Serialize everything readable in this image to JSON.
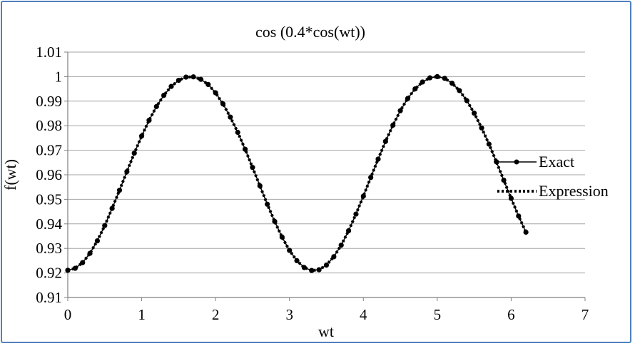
{
  "chart_data": {
    "type": "line",
    "title": "cos (0.4*cos(wt))",
    "xlabel": "wt",
    "ylabel": "f(wt)",
    "xlim": [
      0,
      7
    ],
    "ylim": [
      0.91,
      1.01
    ],
    "x_ticks": [
      "0",
      "1",
      "2",
      "3",
      "4",
      "5",
      "6",
      "7"
    ],
    "y_ticks": [
      "0.91",
      "0.92",
      "0.93",
      "0.94",
      "0.95",
      "0.96",
      "0.97",
      "0.98",
      "0.99",
      "1",
      "1.01"
    ],
    "grid": "horizontal",
    "legend_position": "right",
    "series": [
      {
        "name": "Exact",
        "style": "solid line with circle markers",
        "color": "#000000",
        "x": [
          0.0,
          0.1,
          0.2,
          0.3,
          0.4,
          0.5,
          0.6,
          0.7,
          0.8,
          0.9,
          1.0,
          1.1,
          1.2,
          1.3,
          1.4,
          1.5,
          1.6,
          1.7,
          1.8,
          1.9,
          2.0,
          2.1,
          2.2,
          2.3,
          2.4,
          2.5,
          2.6,
          2.7,
          2.8,
          2.9,
          3.0,
          3.1,
          3.2,
          3.3,
          3.4,
          3.5,
          3.6,
          3.7,
          3.8,
          3.9,
          4.0,
          4.1,
          4.2,
          4.3,
          4.4,
          4.5,
          4.6,
          4.7,
          4.8,
          4.9,
          5.0,
          5.1,
          5.2,
          5.3,
          5.4,
          5.5,
          5.6,
          5.7,
          5.8,
          5.9,
          6.0,
          6.1,
          6.2
        ],
        "y": [
          0.9211,
          0.9219,
          0.9242,
          0.928,
          0.9331,
          0.9393,
          0.9463,
          0.9537,
          0.9613,
          0.9688,
          0.9758,
          0.9822,
          0.9878,
          0.9924,
          0.996,
          0.9985,
          0.9998,
          0.9999,
          0.9989,
          0.9968,
          0.9934,
          0.9889,
          0.9835,
          0.9773,
          0.9704,
          0.963,
          0.9555,
          0.948,
          0.941,
          0.9346,
          0.9292,
          0.925,
          0.9222,
          0.921,
          0.9213,
          0.9232,
          0.9266,
          0.9313,
          0.9372,
          0.944,
          0.9513,
          0.9589,
          0.9664,
          0.9736,
          0.9802,
          0.9861,
          0.9911,
          0.995,
          0.9978,
          0.9995,
          1.0,
          0.9993,
          0.9973,
          0.9943,
          0.9902,
          0.9851,
          0.9791,
          0.9725,
          0.9653,
          0.9578,
          0.9504,
          0.9432,
          0.9366
        ]
      },
      {
        "name": "Expression",
        "style": "dotted line",
        "color": "#000000",
        "x": [
          0.0,
          0.1,
          0.2,
          0.3,
          0.4,
          0.5,
          0.6,
          0.7,
          0.8,
          0.9,
          1.0,
          1.1,
          1.2,
          1.3,
          1.4,
          1.5,
          1.6,
          1.7,
          1.8,
          1.9,
          2.0,
          2.1,
          2.2,
          2.3,
          2.4,
          2.5,
          2.6,
          2.7,
          2.8,
          2.9,
          3.0,
          3.1,
          3.2,
          3.3,
          3.4,
          3.5,
          3.6,
          3.7,
          3.8,
          3.9,
          4.0,
          4.1,
          4.2,
          4.3,
          4.4,
          4.5,
          4.6,
          4.7,
          4.8,
          4.9,
          5.0,
          5.1,
          5.2,
          5.3,
          5.4,
          5.5,
          5.6,
          5.7,
          5.8,
          5.9,
          6.0,
          6.1,
          6.2
        ],
        "y": [
          0.9211,
          0.9219,
          0.9242,
          0.928,
          0.9331,
          0.9393,
          0.9463,
          0.9537,
          0.9613,
          0.9688,
          0.9758,
          0.9822,
          0.9878,
          0.9924,
          0.996,
          0.9985,
          0.9998,
          0.9999,
          0.9989,
          0.9968,
          0.9934,
          0.9889,
          0.9835,
          0.9773,
          0.9704,
          0.963,
          0.9555,
          0.948,
          0.941,
          0.9346,
          0.9292,
          0.925,
          0.9222,
          0.921,
          0.9213,
          0.9232,
          0.9266,
          0.9313,
          0.9372,
          0.944,
          0.9513,
          0.9589,
          0.9664,
          0.9736,
          0.9802,
          0.9861,
          0.9911,
          0.995,
          0.9978,
          0.9995,
          1.0,
          0.9993,
          0.9973,
          0.9943,
          0.9902,
          0.9851,
          0.9791,
          0.9725,
          0.9653,
          0.9578,
          0.9504,
          0.9432,
          0.9366
        ]
      }
    ]
  }
}
